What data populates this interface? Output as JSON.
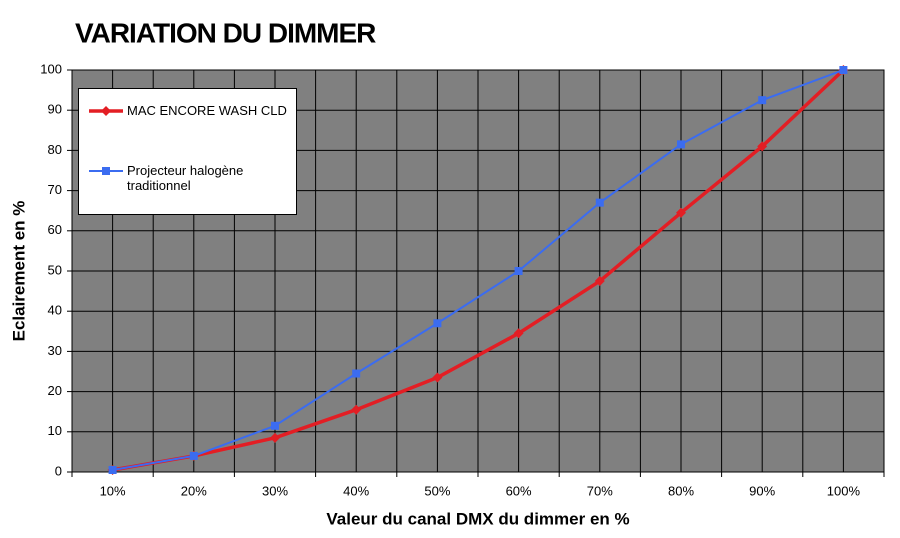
{
  "chart_data": {
    "type": "line",
    "title": "VARIATION DU DIMMER",
    "x_label": "Valeur du canal DMX du dimmer en %",
    "y_label": "Eclairement en %",
    "categories": [
      "10%",
      "20%",
      "30%",
      "40%",
      "50%",
      "60%",
      "70%",
      "80%",
      "90%",
      "100%"
    ],
    "series": [
      {
        "name": "MAC ENCORE WASH CLD",
        "color": "#e31e24",
        "marker": "diamond",
        "values": [
          0.5,
          4,
          8.5,
          15.5,
          23.5,
          34.5,
          47.5,
          64.5,
          81,
          100
        ]
      },
      {
        "name": "Projecteur halogène traditionnel",
        "color": "#3b6cf0",
        "marker": "square",
        "values": [
          0.5,
          4,
          11.5,
          24.5,
          37,
          50,
          67,
          81.5,
          92.5,
          100
        ]
      }
    ],
    "ylim": [
      0,
      100
    ],
    "yticks": [
      0,
      10,
      20,
      30,
      40,
      50,
      60,
      70,
      80,
      90,
      100
    ],
    "grid": true,
    "legend": "top-left"
  }
}
